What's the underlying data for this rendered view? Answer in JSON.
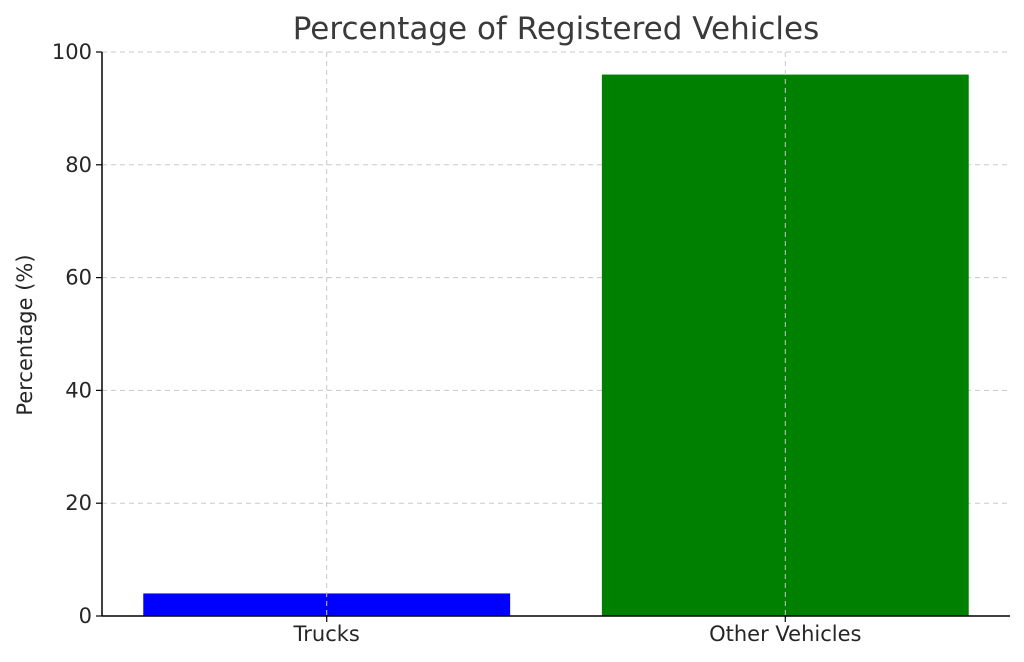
{
  "chart_data": {
    "type": "bar",
    "title": "Percentage of Registered Vehicles",
    "xlabel": "",
    "ylabel": "Percentage (%)",
    "categories": [
      "Trucks",
      "Other Vehicles"
    ],
    "values": [
      4,
      96
    ],
    "colors": [
      "#0000ff",
      "#008000"
    ],
    "ylim": [
      0,
      100
    ],
    "yticks": [
      "0",
      "20",
      "40",
      "60",
      "80",
      "100"
    ],
    "grid": true,
    "legend": "none"
  }
}
